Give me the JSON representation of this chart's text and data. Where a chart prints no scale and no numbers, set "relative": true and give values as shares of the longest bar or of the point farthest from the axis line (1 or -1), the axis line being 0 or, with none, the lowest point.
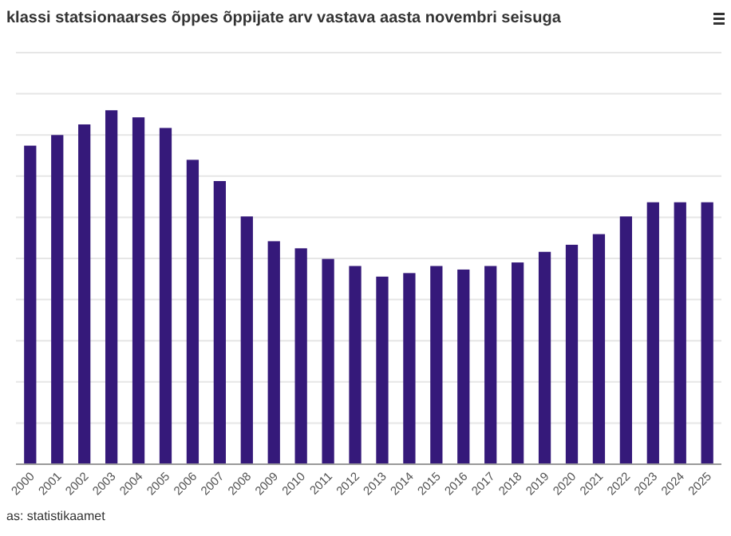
{
  "chart_data": {
    "type": "bar",
    "title": "klassi statsionaarses õppes õppijate arv vastava aasta novembri seisuga",
    "annotations": [
      "as: statistikaamet"
    ],
    "relative": true,
    "grid": "y",
    "color": "#35197a",
    "categories": [
      "2000",
      "2001",
      "2002",
      "2003",
      "2004",
      "2005",
      "2006",
      "2007",
      "2008",
      "2009",
      "2010",
      "2011",
      "2012",
      "2013",
      "2014",
      "2015",
      "2016",
      "2017",
      "2018",
      "2019",
      "2020",
      "2021",
      "2022",
      "2023",
      "2024",
      "2025"
    ],
    "values": [
      0.9,
      0.93,
      0.96,
      1,
      0.98,
      0.95,
      0.86,
      0.8,
      0.7,
      0.63,
      0.61,
      0.58,
      0.56,
      0.53,
      0.54,
      0.56,
      0.55,
      0.56,
      0.57,
      0.6,
      0.62,
      0.65,
      0.7,
      0.74,
      0.74,
      0.74
    ]
  }
}
